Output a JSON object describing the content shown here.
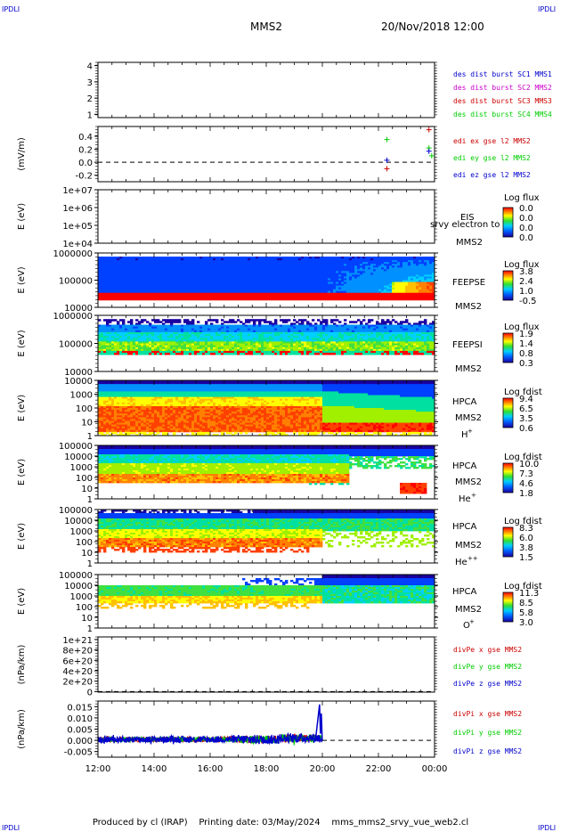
{
  "header": {
    "corner_label": "IPDLI",
    "title": "MMS2",
    "date": "20/Nov/2018 12:00"
  },
  "footer": {
    "produced_by": "Produced by cl (IRAP)",
    "printing_date": "Printing date: 03/May/2024",
    "script_name": "mms_mms2_srvy_vue_web2.cl"
  },
  "chart_data": [
    {
      "type": "line",
      "panel": "dist-burst",
      "ylabel": "",
      "y_ticks": [
        "4",
        "3",
        "2",
        "1"
      ],
      "ylim": [
        0.8,
        4.2
      ],
      "series": [
        {
          "name": "des dist burst SC1 MMS1",
          "color": "#0000cc",
          "values": []
        },
        {
          "name": "des dist burst SC2 MMS2",
          "color": "#cc00cc",
          "values": []
        },
        {
          "name": "des dist burst SC3 MMS3",
          "color": "#cc0000",
          "values": []
        },
        {
          "name": "des dist burst SC4 MMS4",
          "color": "#00cc00",
          "values": []
        }
      ]
    },
    {
      "type": "scatter",
      "panel": "edi-e",
      "ylabel": "(mV/m)",
      "y_ticks": [
        "0.4",
        "0.2",
        "0.0",
        "-0.2"
      ],
      "ylim": [
        -0.3,
        0.55
      ],
      "series": [
        {
          "name": "edi ex gse l2 MMS2",
          "color": "#cc0000",
          "x": [
            22.3,
            23.8
          ],
          "y": [
            -0.1,
            0.5
          ]
        },
        {
          "name": "edi ey gse l2 MMS2",
          "color": "#00cc00",
          "x": [
            22.3,
            23.8,
            23.9
          ],
          "y": [
            0.35,
            0.22,
            0.1
          ]
        },
        {
          "name": "edi ez gse l2 MMS2",
          "color": "#0000cc",
          "x": [
            22.3,
            23.8
          ],
          "y": [
            0.03,
            0.17
          ]
        }
      ]
    },
    {
      "type": "heatmap",
      "panel": "eis",
      "ylabel": "E (eV)",
      "y_ticks": [
        "1e+07",
        "1e+06",
        "1e+05",
        "1e+04"
      ],
      "instrument": "EIS",
      "overlay_text": "srvy electron to",
      "spacecraft": "MMS2",
      "colorbar_title": "Log flux",
      "colorbar_ticks": [
        "0.0",
        "0.0",
        "0.0",
        "0.0"
      ]
    },
    {
      "type": "heatmap",
      "panel": "feeps-e",
      "ylabel": "E (eV)",
      "y_ticks": [
        "1000000",
        "100000",
        "10000"
      ],
      "instrument": "FEEPSE",
      "spacecraft": "MMS2",
      "colorbar_title": "Log flux",
      "colorbar_ticks": [
        "3.8",
        "2.4",
        "1.0",
        "-0.5"
      ]
    },
    {
      "type": "heatmap",
      "panel": "feeps-i",
      "ylabel": "E (eV)",
      "y_ticks": [
        "1000000",
        "100000",
        "10000"
      ],
      "instrument": "FEEPSI",
      "spacecraft": "MMS2",
      "colorbar_title": "Log flux",
      "colorbar_ticks": [
        "1.9",
        "1.4",
        "0.8",
        "0.3"
      ]
    },
    {
      "type": "heatmap",
      "panel": "hpca-h",
      "ylabel": "E (eV)",
      "y_ticks": [
        "10000",
        "1000",
        "100",
        "10",
        "1"
      ],
      "instrument": "HPCA",
      "spacecraft": "MMS2",
      "species": "H",
      "charge": "+",
      "colorbar_title": "Log fdist",
      "colorbar_ticks": [
        "9.4",
        "6.5",
        "3.5",
        "0.6"
      ]
    },
    {
      "type": "heatmap",
      "panel": "hpca-he1",
      "ylabel": "E (eV)",
      "y_ticks": [
        "100000",
        "10000",
        "1000",
        "100",
        "10",
        "1"
      ],
      "instrument": "HPCA",
      "spacecraft": "MMS2",
      "species": "He",
      "charge": "+",
      "colorbar_title": "Log fdist",
      "colorbar_ticks": [
        "10.0",
        "7.3",
        "4.6",
        "1.8"
      ]
    },
    {
      "type": "heatmap",
      "panel": "hpca-he2",
      "ylabel": "E (eV)",
      "y_ticks": [
        "100000",
        "10000",
        "1000",
        "100",
        "10",
        "1"
      ],
      "instrument": "HPCA",
      "spacecraft": "MMS2",
      "species": "He",
      "charge": "++",
      "colorbar_title": "Log fdist",
      "colorbar_ticks": [
        "8.3",
        "6.0",
        "3.8",
        "1.5"
      ]
    },
    {
      "type": "heatmap",
      "panel": "hpca-o",
      "ylabel": "E (eV)",
      "y_ticks": [
        "100000",
        "10000",
        "1000",
        "100",
        "10",
        "1"
      ],
      "instrument": "HPCA",
      "spacecraft": "MMS2",
      "species": "O",
      "charge": "+",
      "colorbar_title": "Log fdist",
      "colorbar_ticks": [
        "11.3",
        "8.5",
        "5.8",
        "3.0"
      ]
    },
    {
      "type": "line",
      "panel": "divpe",
      "ylabel": "(nPa/km)",
      "y_ticks": [
        "1e+21",
        "8e+20",
        "6e+20",
        "4e+20",
        "2e+20",
        "0"
      ],
      "ylim": [
        -1e+19,
        1.05e+21
      ],
      "series": [
        {
          "name": "divPe x gse MMS2",
          "color": "#cc0000",
          "values": []
        },
        {
          "name": "divPe y gse MMS2",
          "color": "#00cc00",
          "values": []
        },
        {
          "name": "divPe z gse MMS2",
          "color": "#0000cc",
          "values": []
        }
      ]
    },
    {
      "type": "line",
      "panel": "divpi",
      "ylabel": "(nPa/km)",
      "y_ticks": [
        "0.015",
        "0.010",
        "0.005",
        "0.000",
        "-0.005"
      ],
      "ylim": [
        -0.0075,
        0.0175
      ],
      "series": [
        {
          "name": "divPi x gse MMS2",
          "color": "#cc0000"
        },
        {
          "name": "divPi y gse MMS2",
          "color": "#00cc00"
        },
        {
          "name": "divPi z gse MMS2",
          "color": "#0000cc"
        }
      ]
    }
  ],
  "x_axis": {
    "ticks": [
      "12:00",
      "14:00",
      "16:00",
      "18:00",
      "20:00",
      "22:00",
      "00:00"
    ],
    "range_hours": [
      12,
      24
    ]
  }
}
